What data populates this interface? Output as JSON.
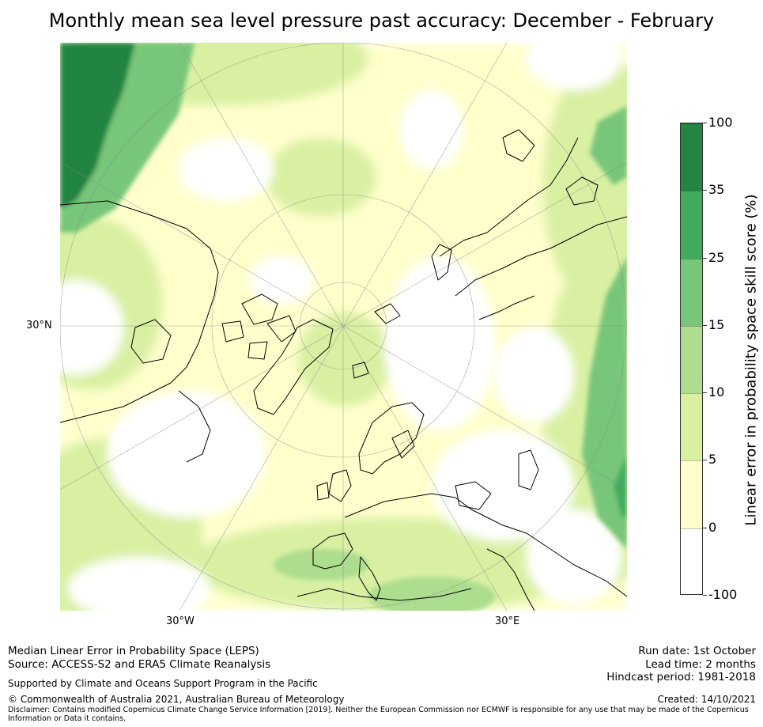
{
  "title": "Monthly mean sea level pressure past accuracy: December - February",
  "map": {
    "labels": {
      "left_lat": "30°N",
      "bottom_left_lon": "30°W",
      "bottom_right_lon": "30°E"
    }
  },
  "colorbar": {
    "title": "Linear error in probability space skill score (%)",
    "segments": [
      {
        "from": "-100",
        "to": "0",
        "color": "#ffffff"
      },
      {
        "from": "0",
        "to": "5",
        "color": "#ffffcc"
      },
      {
        "from": "5",
        "to": "10",
        "color": "#d9f0a3"
      },
      {
        "from": "10",
        "to": "15",
        "color": "#addd8e"
      },
      {
        "from": "15",
        "to": "25",
        "color": "#78c679"
      },
      {
        "from": "25",
        "to": "35",
        "color": "#41ab5d"
      },
      {
        "from": "35",
        "to": "100",
        "color": "#238443"
      }
    ],
    "ticks": [
      "100",
      "35",
      "25",
      "15",
      "10",
      "5",
      "0",
      "-100"
    ]
  },
  "footer": {
    "line1": "Median Linear Error in Probability Space (LEPS)",
    "line2": "Source: ACCESS-S2 and ERA5 Climate Reanalysis",
    "support": "Supported by Climate and Oceans Support Program in the Pacific",
    "copyright": "© Commonwealth of Australia 2021, Australian Bureau of Meteorology",
    "run_date": "Run date: 1st October",
    "lead_time": "Lead time: 2 months",
    "hindcast": "Hindcast period: 1981-2018",
    "created": "Created: 14/10/2021",
    "disclaimer": "Disclaimer: Contains modified Copernicus Climate Change Service Information [2019]. Neither the European Commission nor ECMWF is responsible for any use that may be made of the Copernicus Information or Data it contains."
  }
}
